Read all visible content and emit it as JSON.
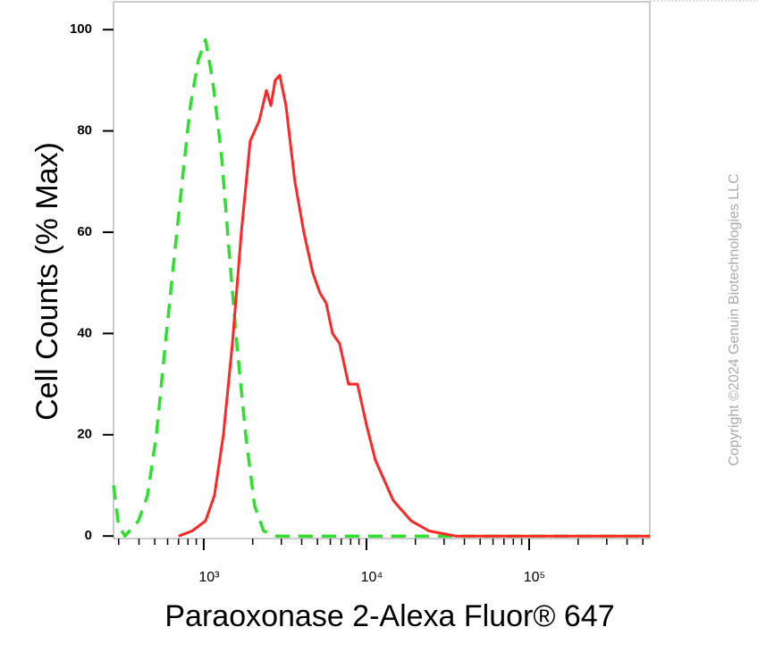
{
  "chart_data": {
    "type": "line",
    "xlabel": "Paraoxonase 2-Alexa Fluor® 647",
    "ylabel": "Cell Counts (% Max)",
    "annotation": "Copyright ©2024 Genuin Biotechnologies LLC",
    "xscale": "log",
    "xlim": [
      279,
      552000
    ],
    "ylim": [
      -0.5,
      105.5
    ],
    "xticks": [
      {
        "value": 1000,
        "label": "10³"
      },
      {
        "value": 10000,
        "label": "10⁴"
      },
      {
        "value": 100000,
        "label": "10⁵"
      }
    ],
    "xminorticks": [
      300,
      400,
      500,
      600,
      700,
      800,
      900,
      2000,
      3000,
      4000,
      5000,
      6000,
      7000,
      8000,
      9000,
      20000,
      30000,
      40000,
      50000,
      60000,
      70000,
      80000,
      90000,
      200000,
      300000,
      400000,
      500000
    ],
    "yticks": [
      0,
      20,
      40,
      60,
      80,
      100
    ],
    "series": [
      {
        "color": "#2ee02e",
        "dashed": true,
        "x": [
          279,
          300,
          328,
          397,
          451,
          512,
          581,
          659,
          748,
          828,
          927,
          1025,
          1135,
          1288,
          1443,
          1596,
          1811,
          2055,
          2333,
          2824,
          8810,
          31260,
          110700,
          552000
        ],
        "values": [
          10,
          2,
          0,
          3,
          8,
          20,
          38,
          55,
          72,
          85,
          94,
          98,
          90,
          75,
          55,
          38,
          20,
          6,
          1,
          0,
          0,
          0,
          0,
          0
        ]
      },
      {
        "color": "#ff2626",
        "dashed": false,
        "x": [
          701,
          848,
          1025,
          1164,
          1321,
          1500,
          1702,
          1931,
          2192,
          2427,
          2584,
          2752,
          2933,
          3202,
          3634,
          4124,
          4680,
          5177,
          5660,
          6185,
          6842,
          7766,
          8810,
          10000,
          11350,
          14620,
          18840,
          24270,
          35400,
          552000
        ],
        "values": [
          0,
          1,
          3,
          8,
          20,
          38,
          60,
          78,
          82,
          88,
          85,
          90,
          91,
          85,
          70,
          60,
          52,
          48,
          46,
          40,
          38,
          30,
          30,
          22,
          15,
          7,
          3,
          1,
          0,
          0
        ]
      }
    ]
  }
}
